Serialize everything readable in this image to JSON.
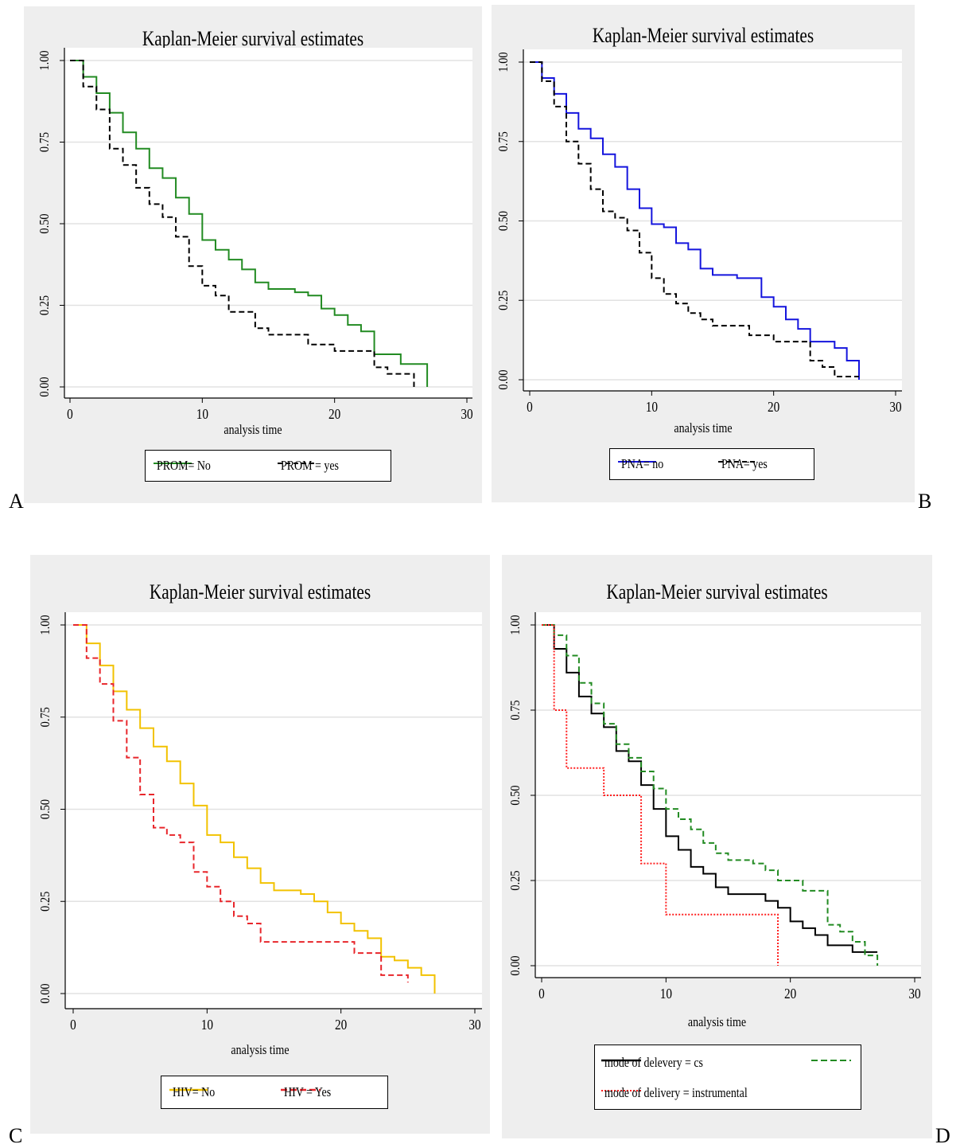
{
  "panels": [
    {
      "id": "A",
      "letter": "A",
      "title": "Kaplan-Meier survival estimates",
      "xlabel": "analysis time",
      "legend": [
        "PROM=  No",
        "PROM = yes"
      ]
    },
    {
      "id": "B",
      "letter": "B",
      "title": "Kaplan-Meier survival estimates",
      "xlabel": "analysis time",
      "legend": [
        "PNA= no",
        "PNA= yes"
      ]
    },
    {
      "id": "C",
      "letter": "C",
      "title": "Kaplan-Meier survival estimates",
      "xlabel": "analysis time",
      "legend": [
        "HIV= No",
        "HIV = Yes"
      ]
    },
    {
      "id": "D",
      "letter": "D",
      "title": "Kaplan-Meier survival estimates",
      "xlabel": "analysis time",
      "legend": [
        "mode of delevery = cs",
        "",
        "mode  of delivery  = instrumental"
      ]
    }
  ],
  "colors": {
    "panel_bg": "#eeeeee",
    "green": "#228B22",
    "black": "#000000",
    "blue": "#1515dd",
    "yellow": "#f2c200",
    "red": "#e8262b",
    "dotted_red": "#ff2020",
    "grid": "#e2e2e2"
  },
  "chart_data": [
    {
      "panel": "A",
      "type": "line",
      "step": true,
      "title": "Kaplan-Meier survival estimates",
      "xlabel": "analysis time",
      "ylabel": "",
      "xlim": [
        0,
        30
      ],
      "ylim": [
        0,
        1
      ],
      "x_ticks": [
        0,
        10,
        20,
        30
      ],
      "y_ticks": [
        "0.00",
        "0.25",
        "0.50",
        "0.75",
        "1.00"
      ],
      "grid": true,
      "legend_position": "bottom",
      "series": [
        {
          "name": "PROM=  No",
          "color": "#228B22",
          "style": "solid",
          "x": [
            0,
            1,
            2,
            3,
            4,
            5,
            6,
            7,
            8,
            9,
            10,
            11,
            12,
            13,
            14,
            15,
            17,
            18,
            19,
            20,
            21,
            22,
            23,
            25,
            27
          ],
          "y": [
            1.0,
            0.95,
            0.9,
            0.84,
            0.78,
            0.73,
            0.67,
            0.64,
            0.58,
            0.53,
            0.45,
            0.42,
            0.39,
            0.36,
            0.32,
            0.3,
            0.29,
            0.28,
            0.24,
            0.22,
            0.19,
            0.17,
            0.1,
            0.07,
            0.0
          ]
        },
        {
          "name": "PROM = yes",
          "color": "#000000",
          "style": "dashed",
          "x": [
            0,
            1,
            2,
            3,
            4,
            5,
            6,
            7,
            8,
            9,
            10,
            11,
            12,
            14,
            15,
            18,
            20,
            23,
            24,
            26
          ],
          "y": [
            1.0,
            0.92,
            0.85,
            0.73,
            0.68,
            0.61,
            0.56,
            0.52,
            0.46,
            0.37,
            0.31,
            0.28,
            0.23,
            0.18,
            0.16,
            0.13,
            0.11,
            0.06,
            0.04,
            0.0
          ]
        }
      ]
    },
    {
      "panel": "B",
      "type": "line",
      "step": true,
      "title": "Kaplan-Meier survival estimates",
      "xlabel": "analysis time",
      "ylabel": "",
      "xlim": [
        0,
        30
      ],
      "ylim": [
        0,
        1
      ],
      "x_ticks": [
        0,
        10,
        20,
        30
      ],
      "y_ticks": [
        "0.00",
        "0.25",
        "0.50",
        "0.75",
        "1.00"
      ],
      "grid": true,
      "legend_position": "bottom",
      "series": [
        {
          "name": "PNA= no",
          "color": "#1515dd",
          "style": "solid",
          "x": [
            0,
            1,
            2,
            3,
            4,
            5,
            6,
            7,
            8,
            9,
            10,
            11,
            12,
            13,
            14,
            15,
            17,
            19,
            20,
            21,
            22,
            23,
            25,
            26,
            27
          ],
          "y": [
            1.0,
            0.95,
            0.9,
            0.84,
            0.79,
            0.76,
            0.71,
            0.67,
            0.6,
            0.54,
            0.49,
            0.48,
            0.43,
            0.41,
            0.35,
            0.33,
            0.32,
            0.26,
            0.23,
            0.19,
            0.16,
            0.12,
            0.1,
            0.06,
            0.0
          ]
        },
        {
          "name": "PNA= yes",
          "color": "#000000",
          "style": "dashed",
          "x": [
            0,
            1,
            2,
            3,
            4,
            5,
            6,
            7,
            8,
            9,
            10,
            11,
            12,
            13,
            14,
            15,
            18,
            20,
            23,
            24,
            25,
            27
          ],
          "y": [
            1.0,
            0.94,
            0.86,
            0.75,
            0.68,
            0.6,
            0.53,
            0.51,
            0.47,
            0.4,
            0.32,
            0.27,
            0.24,
            0.21,
            0.19,
            0.17,
            0.14,
            0.12,
            0.06,
            0.04,
            0.01,
            0.01
          ]
        }
      ]
    },
    {
      "panel": "C",
      "type": "line",
      "step": true,
      "title": "Kaplan-Meier survival estimates",
      "xlabel": "analysis time",
      "ylabel": "",
      "xlim": [
        0,
        30
      ],
      "ylim": [
        0,
        1
      ],
      "x_ticks": [
        0,
        10,
        20,
        30
      ],
      "y_ticks": [
        "0.00",
        "0.25",
        "0.50",
        "0.75",
        "1.00"
      ],
      "grid": true,
      "legend_position": "bottom",
      "series": [
        {
          "name": "HIV= No",
          "color": "#f2c200",
          "style": "solid",
          "x": [
            0,
            1,
            2,
            3,
            4,
            5,
            6,
            7,
            8,
            9,
            10,
            11,
            12,
            13,
            14,
            15,
            17,
            18,
            19,
            20,
            21,
            22,
            23,
            24,
            25,
            26,
            27
          ],
          "y": [
            1.0,
            0.95,
            0.89,
            0.82,
            0.77,
            0.72,
            0.67,
            0.63,
            0.57,
            0.51,
            0.43,
            0.41,
            0.37,
            0.34,
            0.3,
            0.28,
            0.27,
            0.25,
            0.22,
            0.19,
            0.17,
            0.15,
            0.1,
            0.09,
            0.07,
            0.05,
            0.0
          ]
        },
        {
          "name": "HIV = Yes",
          "color": "#e8262b",
          "style": "dashed",
          "x": [
            0,
            1,
            2,
            3,
            4,
            5,
            6,
            7,
            8,
            9,
            10,
            11,
            12,
            13,
            14,
            21,
            23,
            25
          ],
          "y": [
            1.0,
            0.91,
            0.84,
            0.74,
            0.64,
            0.54,
            0.45,
            0.43,
            0.41,
            0.33,
            0.29,
            0.25,
            0.21,
            0.19,
            0.14,
            0.11,
            0.05,
            0.03
          ]
        }
      ]
    },
    {
      "panel": "D",
      "type": "line",
      "step": true,
      "title": "Kaplan-Meier survival estimates",
      "xlabel": "analysis time",
      "ylabel": "",
      "xlim": [
        0,
        30
      ],
      "ylim": [
        0,
        1
      ],
      "x_ticks": [
        0,
        10,
        20,
        30
      ],
      "y_ticks": [
        "0.00",
        "0.25",
        "0.50",
        "0.75",
        "1.00"
      ],
      "grid": true,
      "legend_position": "bottom",
      "series": [
        {
          "name": "mode of delevery = cs",
          "color": "#000000",
          "style": "solid",
          "x": [
            0,
            1,
            2,
            3,
            4,
            5,
            6,
            7,
            8,
            9,
            10,
            11,
            12,
            13,
            14,
            15,
            18,
            19,
            20,
            21,
            22,
            23,
            25,
            27
          ],
          "y": [
            1.0,
            0.93,
            0.86,
            0.79,
            0.74,
            0.7,
            0.63,
            0.6,
            0.53,
            0.46,
            0.38,
            0.34,
            0.29,
            0.27,
            0.23,
            0.21,
            0.19,
            0.17,
            0.13,
            0.11,
            0.09,
            0.06,
            0.04,
            0.04
          ]
        },
        {
          "name": "",
          "color": "#228B22",
          "style": "dashed",
          "x": [
            0,
            1,
            2,
            3,
            4,
            5,
            6,
            7,
            8,
            9,
            10,
            11,
            12,
            13,
            14,
            15,
            17,
            18,
            19,
            21,
            23,
            24,
            25,
            26,
            27
          ],
          "y": [
            1.0,
            0.97,
            0.91,
            0.83,
            0.77,
            0.71,
            0.65,
            0.61,
            0.57,
            0.52,
            0.46,
            0.43,
            0.4,
            0.36,
            0.33,
            0.31,
            0.3,
            0.28,
            0.25,
            0.22,
            0.12,
            0.1,
            0.07,
            0.03,
            0.0
          ]
        },
        {
          "name": "mode  of delivery  = instrumental",
          "color": "#ff2020",
          "style": "dotted",
          "x": [
            0,
            1,
            2,
            5,
            8,
            10,
            19
          ],
          "y": [
            1.0,
            0.75,
            0.58,
            0.5,
            0.3,
            0.15,
            0.0
          ]
        }
      ]
    }
  ]
}
